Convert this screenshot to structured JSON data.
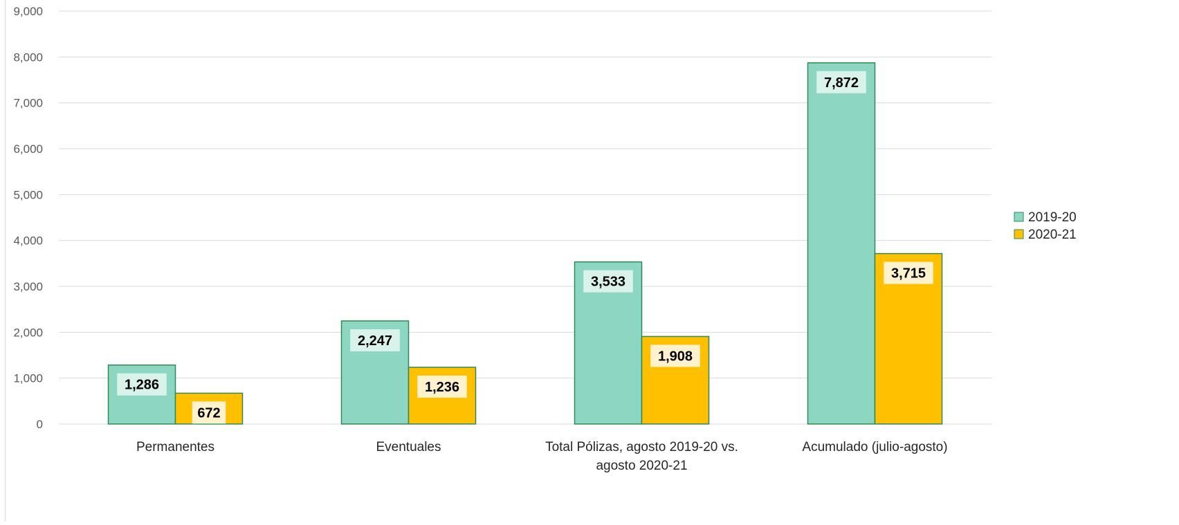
{
  "chart_data": {
    "type": "bar",
    "title": "",
    "xlabel": "",
    "ylabel": "",
    "ylim": [
      0,
      9000
    ],
    "yticks": [
      0,
      1000,
      2000,
      3000,
      4000,
      5000,
      6000,
      7000,
      8000,
      9000
    ],
    "ytick_labels": [
      "0",
      "1,000",
      "2,000",
      "3,000",
      "4,000",
      "5,000",
      "6,000",
      "7,000",
      "8,000",
      "9,000"
    ],
    "grid": true,
    "legend_position": "right",
    "categories": [
      [
        "Permanentes"
      ],
      [
        "Eventuales"
      ],
      [
        "Total Pólizas, agosto 2019-20  vs.",
        "agosto 2020-21"
      ],
      [
        "Acumulado (julio-agosto)"
      ]
    ],
    "series": [
      {
        "name": "2019-20",
        "values": [
          1286,
          2247,
          3533,
          7872
        ],
        "value_labels": [
          "1,286",
          "2,247",
          "3,533",
          "7,872"
        ],
        "color": "#8dd6c1",
        "stroke": "#2e8b57",
        "label_bg": "#d9f2ea"
      },
      {
        "name": "2020-21",
        "values": [
          672,
          1236,
          1908,
          3715
        ],
        "value_labels": [
          "672",
          "1,236",
          "1,908",
          "3,715"
        ],
        "color": "#ffc000",
        "stroke": "#2e8b57",
        "label_bg": "#fff2cc"
      }
    ]
  }
}
